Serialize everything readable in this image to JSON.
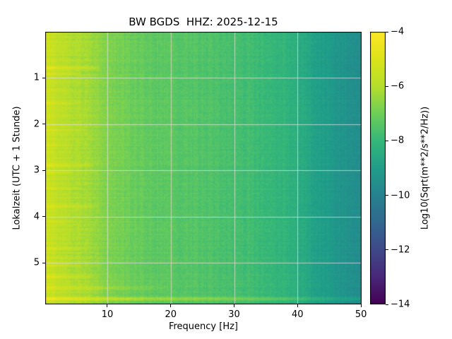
{
  "figure": {
    "background": "#ffffff",
    "network": "BW",
    "station": "BGDS",
    "channel": "HHZ",
    "date": "2025-12-15"
  },
  "chart_data": {
    "type": "heatmap",
    "title": "BW BGDS  HHZ: 2025-12-15",
    "xlabel": "Frequency [Hz]",
    "ylabel": "Lokalzeit (UTC + 1 Stunde)",
    "x_range": [
      0.2,
      50.1
    ],
    "x_ticks": [
      10,
      20,
      30,
      40,
      50
    ],
    "y_range": [
      0,
      5.9
    ],
    "y_ticks": [
      1,
      2,
      3,
      4,
      5
    ],
    "grid": true,
    "grid_color": "#dddddd",
    "colormap": "viridis",
    "colorbar": {
      "label": "Log10(Sqrt(m**2/s**2/Hz))",
      "ticks": [
        -4,
        -6,
        -8,
        -10,
        -12,
        -14
      ],
      "vmin": -14,
      "vmax": -4
    },
    "spectrum_profile": {
      "frequency_hz": [
        0.2,
        1,
        2,
        3,
        4,
        6,
        8,
        10,
        13,
        16,
        20,
        25,
        30,
        34,
        38,
        41,
        44,
        47,
        50
      ],
      "log10_value": [
        -5.2,
        -5.5,
        -5.7,
        -5.85,
        -6.0,
        -6.2,
        -6.45,
        -6.7,
        -7.0,
        -7.2,
        -7.35,
        -7.5,
        -7.65,
        -7.85,
        -8.15,
        -8.55,
        -9.0,
        -9.35,
        -9.65
      ]
    },
    "noise_sigma": 0.18,
    "events": [
      {
        "time_h": 0.78,
        "strength": 0.9,
        "fmax_hz": 9,
        "width_h": 0.03
      },
      {
        "time_h": 0.9,
        "strength": 0.6,
        "fmax_hz": 6,
        "width_h": 0.02
      },
      {
        "time_h": 1.25,
        "strength": 0.35,
        "fmax_hz": 5,
        "width_h": 0.02
      },
      {
        "time_h": 1.55,
        "strength": 0.55,
        "fmax_hz": 6,
        "width_h": 0.02
      },
      {
        "time_h": 2.12,
        "strength": 0.6,
        "fmax_hz": 7,
        "width_h": 0.02
      },
      {
        "time_h": 2.45,
        "strength": 0.35,
        "fmax_hz": 5,
        "width_h": 0.02
      },
      {
        "time_h": 2.9,
        "strength": 0.65,
        "fmax_hz": 8,
        "width_h": 0.025
      },
      {
        "time_h": 3.05,
        "strength": 0.4,
        "fmax_hz": 5,
        "width_h": 0.02
      },
      {
        "time_h": 3.38,
        "strength": 0.5,
        "fmax_hz": 6,
        "width_h": 0.02
      },
      {
        "time_h": 3.78,
        "strength": 0.7,
        "fmax_hz": 9,
        "width_h": 0.03
      },
      {
        "time_h": 4.1,
        "strength": 0.35,
        "fmax_hz": 5,
        "width_h": 0.02
      },
      {
        "time_h": 4.7,
        "strength": 0.55,
        "fmax_hz": 7,
        "width_h": 0.02
      },
      {
        "time_h": 5.05,
        "strength": 0.5,
        "fmax_hz": 6,
        "width_h": 0.02
      },
      {
        "time_h": 5.3,
        "strength": 0.6,
        "fmax_hz": 8,
        "width_h": 0.025
      },
      {
        "time_h": 5.55,
        "strength": 0.7,
        "fmax_hz": 20,
        "width_h": 0.025
      },
      {
        "time_h": 5.78,
        "strength": 1.1,
        "fmax_hz": 60,
        "width_h": 0.03
      }
    ]
  }
}
